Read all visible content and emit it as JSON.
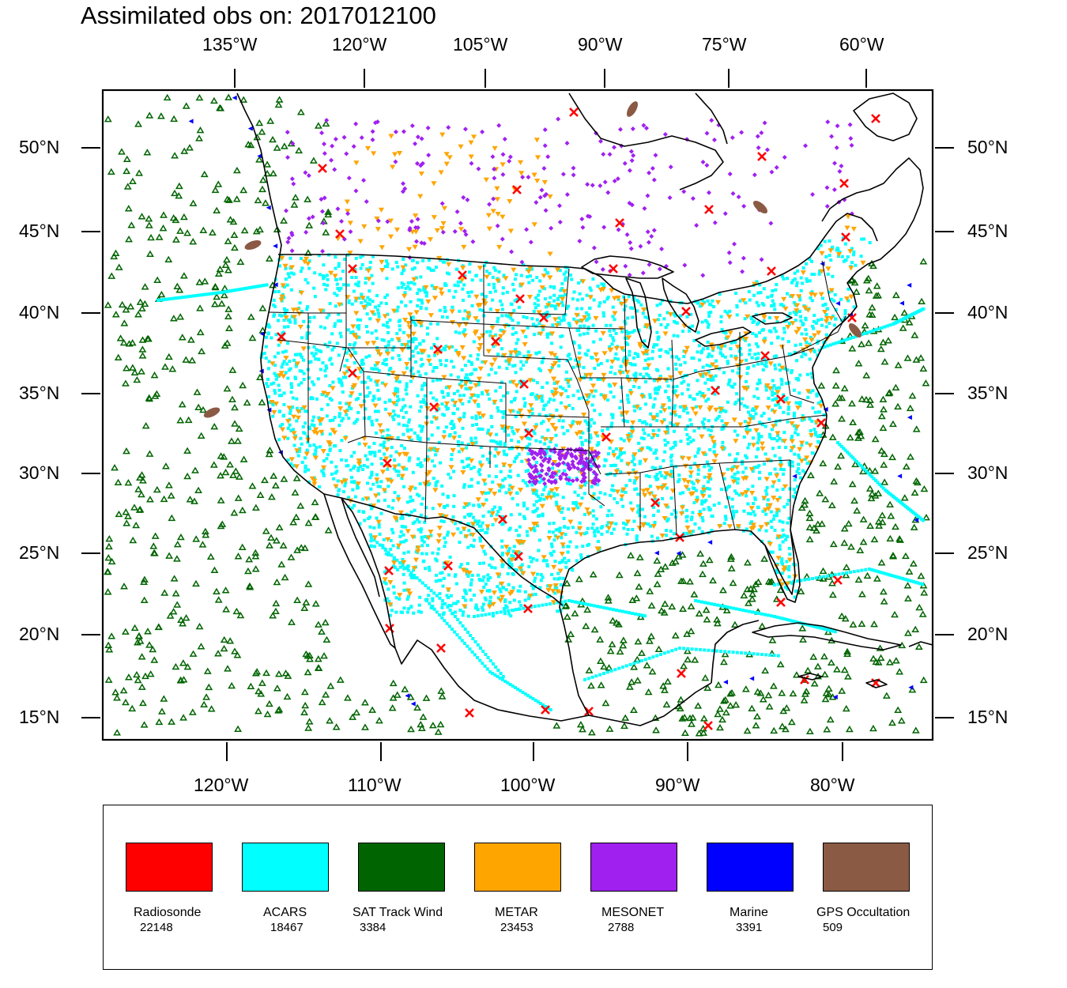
{
  "title": "Assimilated obs on: 2017012100",
  "top_axis": {
    "labels": [
      "135°W",
      "120°W",
      "105°W",
      "90°W",
      "75°W",
      "60°W"
    ]
  },
  "bottom_axis": {
    "labels": [
      "120°W",
      "110°W",
      "100°W",
      "90°W",
      "80°W"
    ]
  },
  "left_axis": {
    "labels": [
      "50°N",
      "45°N",
      "40°N",
      "35°N",
      "30°N",
      "25°N",
      "20°N",
      "15°N"
    ]
  },
  "right_axis": {
    "labels": [
      "50°N",
      "45°N",
      "40°N",
      "35°N",
      "30°N",
      "25°N",
      "20°N",
      "15°N"
    ]
  },
  "legend": {
    "items": [
      {
        "name": "Radiosonde",
        "count": "22148",
        "color": "#ff0000"
      },
      {
        "name": "ACARS",
        "count": "18467",
        "color": "#00ffff"
      },
      {
        "name": "SAT Track Wind",
        "count": "3384",
        "color": "#006400"
      },
      {
        "name": "METAR",
        "count": "23453",
        "color": "#ffa500"
      },
      {
        "name": "MESONET",
        "count": "2788",
        "color": "#a020f0"
      },
      {
        "name": "Marine",
        "count": "3391",
        "color": "#0000ff"
      },
      {
        "name": "GPS Occultation",
        "count": "509",
        "color": "#8b5a44"
      }
    ]
  },
  "colors": {
    "radiosonde": "#ff0000",
    "acars": "#00ffff",
    "sat_wind": "#006400",
    "metar": "#ffa500",
    "mesonet": "#a020f0",
    "marine": "#0000ff",
    "gps": "#8b5a44",
    "coast": "#000000"
  }
}
